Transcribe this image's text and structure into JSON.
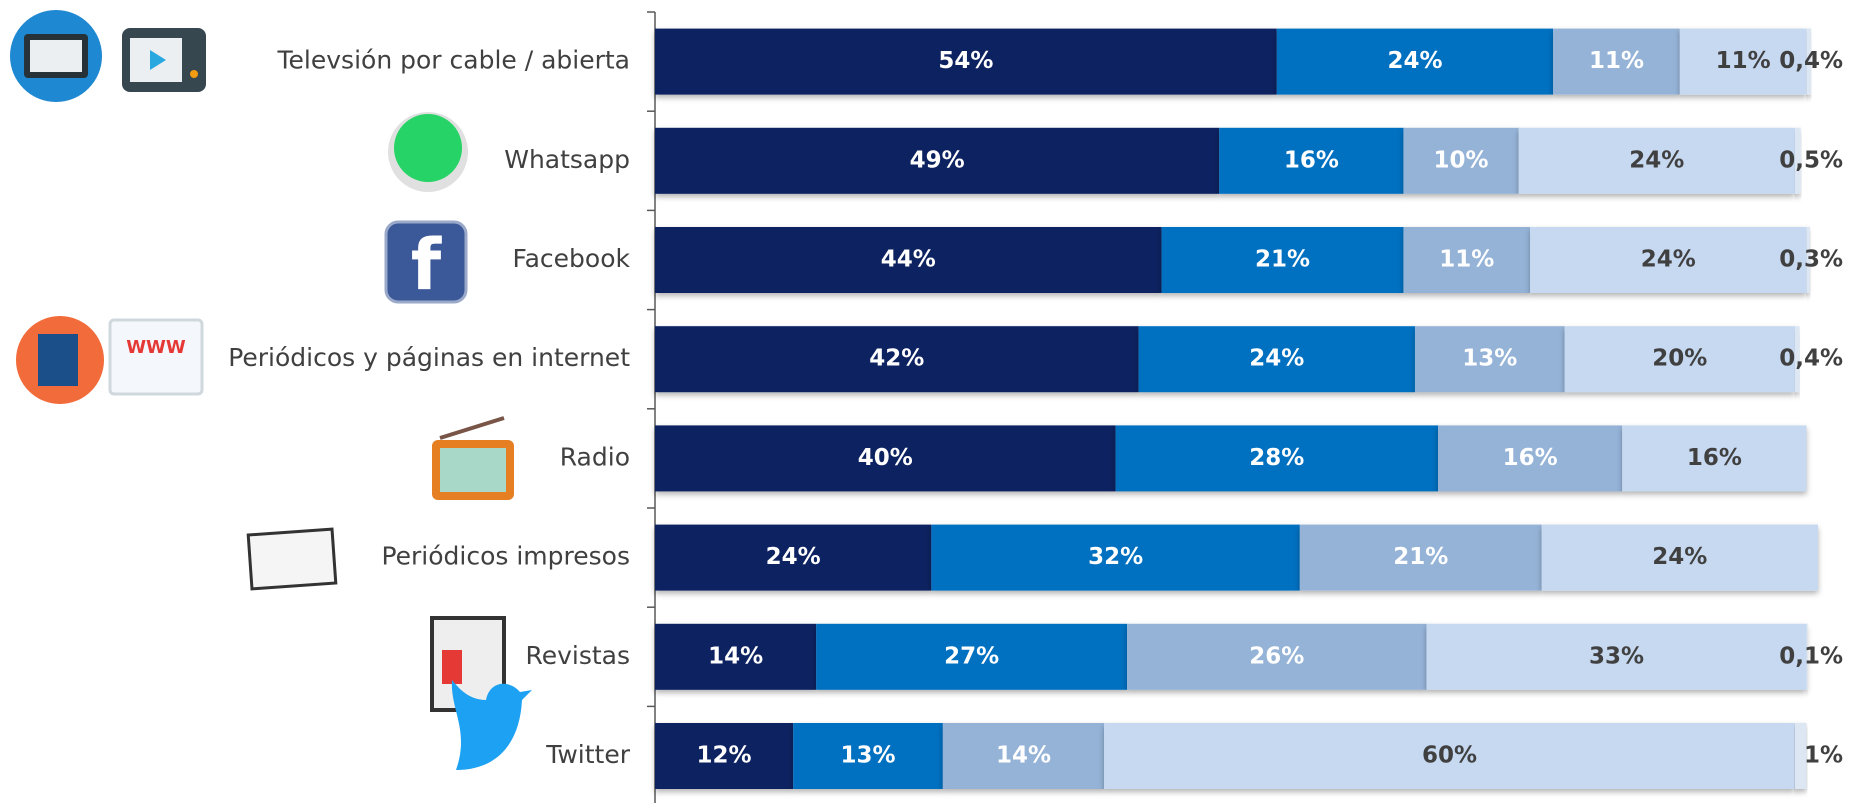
{
  "chart_data": {
    "type": "stacked-bar-horizontal",
    "categories": [
      "Televsión por cable / abierta",
      "Whatsapp",
      "Facebook",
      "Periódicos y páginas en internet",
      "Radio",
      "Periódicos impresos",
      "Revistas",
      "Twitter"
    ],
    "series": [
      {
        "color": "#0b2160",
        "label_color": "#ffffff",
        "values": [
          54,
          49,
          44,
          42,
          40,
          24,
          14,
          12
        ],
        "value_labels": [
          "54%",
          "49%",
          "44%",
          "42%",
          "40%",
          "24%",
          "14%",
          "12%"
        ]
      },
      {
        "color": "#0070c0",
        "label_color": "#ffffff",
        "values": [
          24,
          16,
          21,
          24,
          28,
          32,
          27,
          13
        ],
        "value_labels": [
          "24%",
          "16%",
          "21%",
          "24%",
          "28%",
          "32%",
          "27%",
          "13%"
        ]
      },
      {
        "color": "#95b3d7",
        "label_color": "#ffffff",
        "values": [
          11,
          10,
          11,
          13,
          16,
          21,
          26,
          14
        ],
        "value_labels": [
          "11%",
          "10%",
          "11%",
          "13%",
          "16%",
          "21%",
          "26%",
          "14%"
        ]
      },
      {
        "color": "#c6d9f1",
        "label_color": "#404040",
        "values": [
          11,
          24,
          24,
          20,
          16,
          24,
          33,
          60
        ],
        "value_labels": [
          "11%",
          "24%",
          "24%",
          "20%",
          "16%",
          "24%",
          "33%",
          "60%"
        ]
      },
      {
        "color": "#dde7f3",
        "label_color": "#404040",
        "values": [
          0.4,
          0.5,
          0.3,
          0.4,
          null,
          null,
          0.1,
          1
        ],
        "value_labels": [
          "0,4%",
          "0,5%",
          "0,3%",
          "0,4%",
          null,
          null,
          "0,1%",
          "1%"
        ]
      }
    ]
  }
}
